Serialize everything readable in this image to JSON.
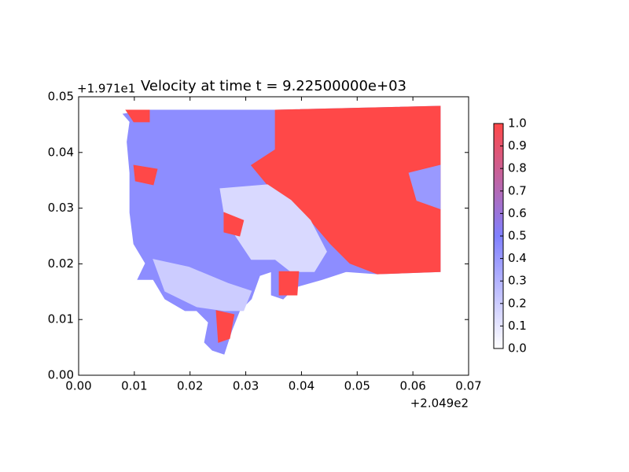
{
  "chart_data": {
    "type": "field",
    "title": "Velocity at time t = 9.22500000e+03",
    "x_offset_label": "+2.049e2",
    "y_offset_label": "+1.971e1",
    "xlim": [
      0,
      0.07
    ],
    "ylim": [
      0,
      0.05
    ],
    "xticks": [
      {
        "value": 0,
        "label": "0.00"
      },
      {
        "value": 0.01,
        "label": "0.01"
      },
      {
        "value": 0.02,
        "label": "0.02"
      },
      {
        "value": 0.03,
        "label": "0.03"
      },
      {
        "value": 0.04,
        "label": "0.04"
      },
      {
        "value": 0.05,
        "label": "0.05"
      },
      {
        "value": 0.06,
        "label": "0.06"
      },
      {
        "value": 0.07,
        "label": "0.07"
      }
    ],
    "yticks": [
      {
        "value": 0,
        "label": "0.00"
      },
      {
        "value": 0.01,
        "label": "0.01"
      },
      {
        "value": 0.02,
        "label": "0.02"
      },
      {
        "value": 0.03,
        "label": "0.03"
      },
      {
        "value": 0.04,
        "label": "0.04"
      },
      {
        "value": 0.05,
        "label": "0.05"
      }
    ],
    "colormap": [
      "#ffffff",
      "#8080ff",
      "#ff4848"
    ],
    "clim": [
      0,
      1
    ],
    "cticks": [
      {
        "value": 0,
        "label": "0.0"
      },
      0.1,
      0.2,
      0.3,
      0.4,
      0.5,
      0.6,
      0.7,
      0.8,
      0.9,
      {
        "value": 1,
        "label": "1.0"
      }
    ],
    "regions": [
      {
        "value": 0.45,
        "x": [
          0.008,
          0.0127,
          0.0353,
          0.0649,
          0.0649,
          0.0536,
          0.048,
          0.0437,
          0.0388,
          0.0367,
          0.0346,
          0.0346,
          0.0325,
          0.031,
          0.0289,
          0.0275,
          0.0261,
          0.024,
          0.0226,
          0.0233,
          0.0212,
          0.0191,
          0.0155,
          0.0134,
          0.0106,
          0.012,
          0.0099,
          0.0092,
          0.0092,
          0.0087,
          0.0092
        ],
        "y": [
          0.0469,
          0.0476,
          0.0476,
          0.0483,
          0.0186,
          0.0182,
          0.0186,
          0.0172,
          0.0158,
          0.0137,
          0.0144,
          0.0186,
          0.0179,
          0.0137,
          0.0116,
          0.0081,
          0.0038,
          0.0045,
          0.0059,
          0.0095,
          0.0116,
          0.0116,
          0.0137,
          0.0172,
          0.0172,
          0.0201,
          0.0236,
          0.0292,
          0.0363,
          0.0419,
          0.0455
        ]
      },
      {
        "value": 1,
        "x": [
          0.0353,
          0.0649,
          0.0649,
          0.0536,
          0.0487,
          0.0452,
          0.0416,
          0.0381,
          0.0339,
          0.031,
          0.0353
        ],
        "y": [
          0.0476,
          0.0483,
          0.0186,
          0.0182,
          0.0201,
          0.0236,
          0.0278,
          0.0314,
          0.0342,
          0.0377,
          0.0405
        ]
      },
      {
        "value": 0.15,
        "x": [
          0.0254,
          0.0339,
          0.0381,
          0.0416,
          0.0445,
          0.0423,
          0.0381,
          0.0353,
          0.031,
          0.0282,
          0.0261
        ],
        "y": [
          0.0335,
          0.0342,
          0.0314,
          0.0278,
          0.0222,
          0.0186,
          0.0186,
          0.0208,
          0.0208,
          0.025,
          0.0292
        ]
      },
      {
        "value": 0.2,
        "x": [
          0.0134,
          0.0198,
          0.0268,
          0.031,
          0.0296,
          0.0261,
          0.0212,
          0.0155
        ],
        "y": [
          0.0208,
          0.0194,
          0.0165,
          0.0151,
          0.0116,
          0.0116,
          0.0123,
          0.0151
        ]
      },
      {
        "value": 1,
        "x": [
          0.0099,
          0.0141,
          0.0134,
          0.0102
        ],
        "y": [
          0.0377,
          0.037,
          0.0342,
          0.0349
        ]
      },
      {
        "value": 1,
        "x": [
          0.0247,
          0.0279,
          0.0271,
          0.0251
        ],
        "y": [
          0.0116,
          0.0109,
          0.0066,
          0.0059
        ]
      },
      {
        "value": 1,
        "x": [
          0.036,
          0.0395,
          0.0392,
          0.036
        ],
        "y": [
          0.0186,
          0.0186,
          0.0144,
          0.0144
        ]
      },
      {
        "value": 1,
        "x": [
          0.0261,
          0.0296,
          0.0289,
          0.0261
        ],
        "y": [
          0.0292,
          0.0278,
          0.025,
          0.0257
        ]
      },
      {
        "value": 1,
        "x": [
          0.0085,
          0.0127,
          0.0127,
          0.0099
        ],
        "y": [
          0.0476,
          0.0476,
          0.0455,
          0.0455
        ]
      },
      {
        "value": 0.4,
        "x": [
          0.0593,
          0.0649,
          0.0649,
          0.0607
        ],
        "y": [
          0.0363,
          0.0377,
          0.0299,
          0.0314
        ]
      }
    ]
  }
}
